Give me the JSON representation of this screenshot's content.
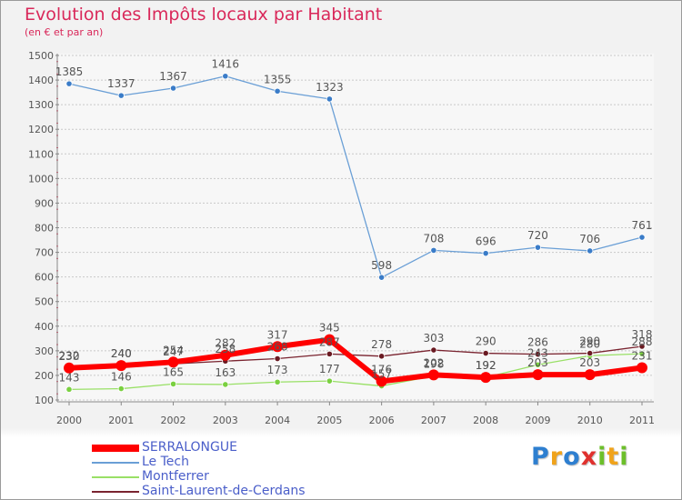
{
  "header": {
    "title": "Evolution des Impôts locaux par Habitant",
    "subtitle": "(en € et par an)"
  },
  "logo": {
    "letters": [
      "P",
      "r",
      "o",
      "x",
      "i",
      "t",
      "i"
    ],
    "colors": [
      "#2e7fd0",
      "#f0a31b",
      "#2e7fd0",
      "#e0312e",
      "#6cbf2a",
      "#f0a31b",
      "#6cbf2a"
    ]
  },
  "chart_data": {
    "type": "line",
    "title": "Evolution des Impôts locaux par Habitant",
    "subtitle": "(en € et par an)",
    "x": [
      "2000",
      "2001",
      "2002",
      "2003",
      "2004",
      "2005",
      "2006",
      "2007",
      "2008",
      "2009",
      "2010",
      "2011"
    ],
    "ylim": [
      100,
      1500
    ],
    "yticks": [
      100,
      200,
      300,
      400,
      500,
      600,
      700,
      800,
      900,
      1000,
      1100,
      1200,
      1300,
      1400,
      1500
    ],
    "grid": "horizontal dashed",
    "legend_position": "bottom-left",
    "series": [
      {
        "name": "SERRALONGUE",
        "color": "#ff0000",
        "values": [
          230,
          240,
          254,
          282,
          317,
          345,
          176,
          202,
          192,
          203,
          203,
          231
        ]
      },
      {
        "name": "Le Tech",
        "color": "#6a9fd6",
        "values": [
          1385,
          1337,
          1367,
          1416,
          1355,
          1323,
          598,
          708,
          696,
          720,
          706,
          761
        ]
      },
      {
        "name": "Montferrer",
        "color": "#99e066",
        "values": [
          143,
          146,
          165,
          163,
          173,
          177,
          157,
          198,
          192,
          243,
          280,
          288
        ]
      },
      {
        "name": "Saint-Laurent-de-Cerdans",
        "color": "#7a2430",
        "values": [
          232,
          240,
          247,
          258,
          268,
          287,
          278,
          303,
          290,
          286,
          290,
          318
        ]
      }
    ]
  }
}
